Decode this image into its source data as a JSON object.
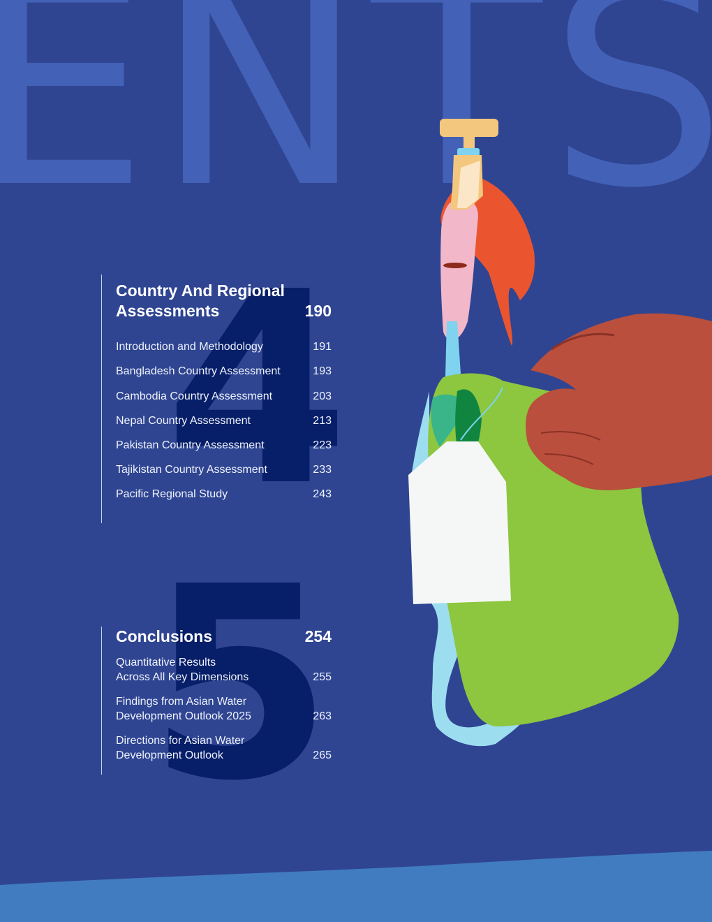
{
  "background_word": "ENTS",
  "section4": {
    "number": "4",
    "title": "Country And Regional Assessments",
    "page": "190",
    "items": [
      {
        "label": "Introduction and Methodology",
        "page": "191"
      },
      {
        "label": "Bangladesh Country Assessment",
        "page": "193"
      },
      {
        "label": "Cambodia Country Assessment",
        "page": "203"
      },
      {
        "label": "Nepal Country Assessment",
        "page": "213"
      },
      {
        "label": "Pakistan Country Assessment",
        "page": "223"
      },
      {
        "label": "Tajikistan Country Assessment",
        "page": "233"
      },
      {
        "label": "Pacific Regional Study",
        "page": "243"
      }
    ]
  },
  "section5": {
    "number": "5",
    "title": "Conclusions",
    "page": "254",
    "items": [
      {
        "label": "Quantitative Results\nAcross All Key Dimensions",
        "page": "255"
      },
      {
        "label": "Findings from Asian Water\nDevelopment Outlook 2025",
        "page": "263"
      },
      {
        "label": "Directions for Asian Water\nDevelopment Outlook",
        "page": "265"
      }
    ]
  },
  "colors": {
    "background": "#2f4592",
    "background_word": "#4361b6",
    "big_number": "#071e68",
    "wave": "#417cc0"
  },
  "illustration": "faucet-pouring-water-into-green-jerrycan-held-by-hand-icon"
}
